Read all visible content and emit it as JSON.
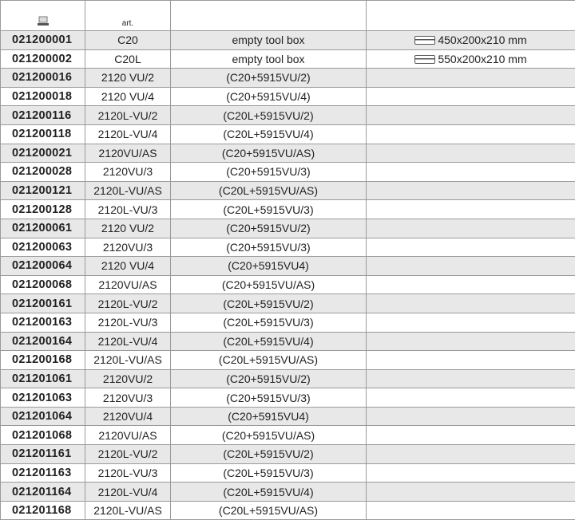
{
  "header": {
    "icon": "toolbox-icon",
    "art_label": "art."
  },
  "rows": [
    {
      "code": "021200001",
      "art": "C20",
      "desc": "empty tool box",
      "dim": "450x200x210 mm"
    },
    {
      "code": "021200002",
      "art": "C20L",
      "desc": "empty tool box",
      "dim": "550x200x210 mm"
    },
    {
      "code": "021200016",
      "art": "2120 VU/2",
      "desc": "(C20+5915VU/2)"
    },
    {
      "code": "021200018",
      "art": "2120 VU/4",
      "desc": "(C20+5915VU/4)"
    },
    {
      "code": "021200116",
      "art": "2120L-VU/2",
      "desc": "(C20L+5915VU/2)"
    },
    {
      "code": "021200118",
      "art": "2120L-VU/4",
      "desc": "(C20L+5915VU/4)"
    },
    {
      "code": "021200021",
      "art": "2120VU/AS",
      "desc": "(C20+5915VU/AS)"
    },
    {
      "code": "021200028",
      "art": "2120VU/3",
      "desc": "(C20+5915VU/3)"
    },
    {
      "code": "021200121",
      "art": "2120L-VU/AS",
      "desc": "(C20L+5915VU/AS)"
    },
    {
      "code": "021200128",
      "art": "2120L-VU/3",
      "desc": "(C20L+5915VU/3)"
    },
    {
      "code": "021200061",
      "art": "2120 VU/2",
      "desc": "(C20+5915VU/2)"
    },
    {
      "code": "021200063",
      "art": "2120VU/3",
      "desc": "(C20+5915VU/3)"
    },
    {
      "code": "021200064",
      "art": "2120 VU/4",
      "desc": "(C20+5915VU4)"
    },
    {
      "code": "021200068",
      "art": "2120VU/AS",
      "desc": "(C20+5915VU/AS)"
    },
    {
      "code": "021200161",
      "art": "2120L-VU/2",
      "desc": "(C20L+5915VU/2)"
    },
    {
      "code": "021200163",
      "art": "2120L-VU/3",
      "desc": "(C20L+5915VU/3)"
    },
    {
      "code": "021200164",
      "art": "2120L-VU/4",
      "desc": "(C20L+5915VU/4)"
    },
    {
      "code": "021200168",
      "art": "2120L-VU/AS",
      "desc": "(C20L+5915VU/AS)"
    },
    {
      "code": "021201061",
      "art": "2120VU/2",
      "desc": "(C20+5915VU/2)"
    },
    {
      "code": "021201063",
      "art": "2120VU/3",
      "desc": "(C20+5915VU/3)"
    },
    {
      "code": "021201064",
      "art": "2120VU/4",
      "desc": "(C20+5915VU4)"
    },
    {
      "code": "021201068",
      "art": "2120VU/AS",
      "desc": "(C20+5915VU/AS)"
    },
    {
      "code": "021201161",
      "art": "2120L-VU/2",
      "desc": "(C20L+5915VU/2)"
    },
    {
      "code": "021201163",
      "art": "2120L-VU/3",
      "desc": "(C20L+5915VU/3)"
    },
    {
      "code": "021201164",
      "art": "2120L-VU/4",
      "desc": "(C20L+5915VU/4)"
    },
    {
      "code": "021201168",
      "art": "2120L-VU/AS",
      "desc": "(C20L+5915VU/AS)"
    }
  ]
}
